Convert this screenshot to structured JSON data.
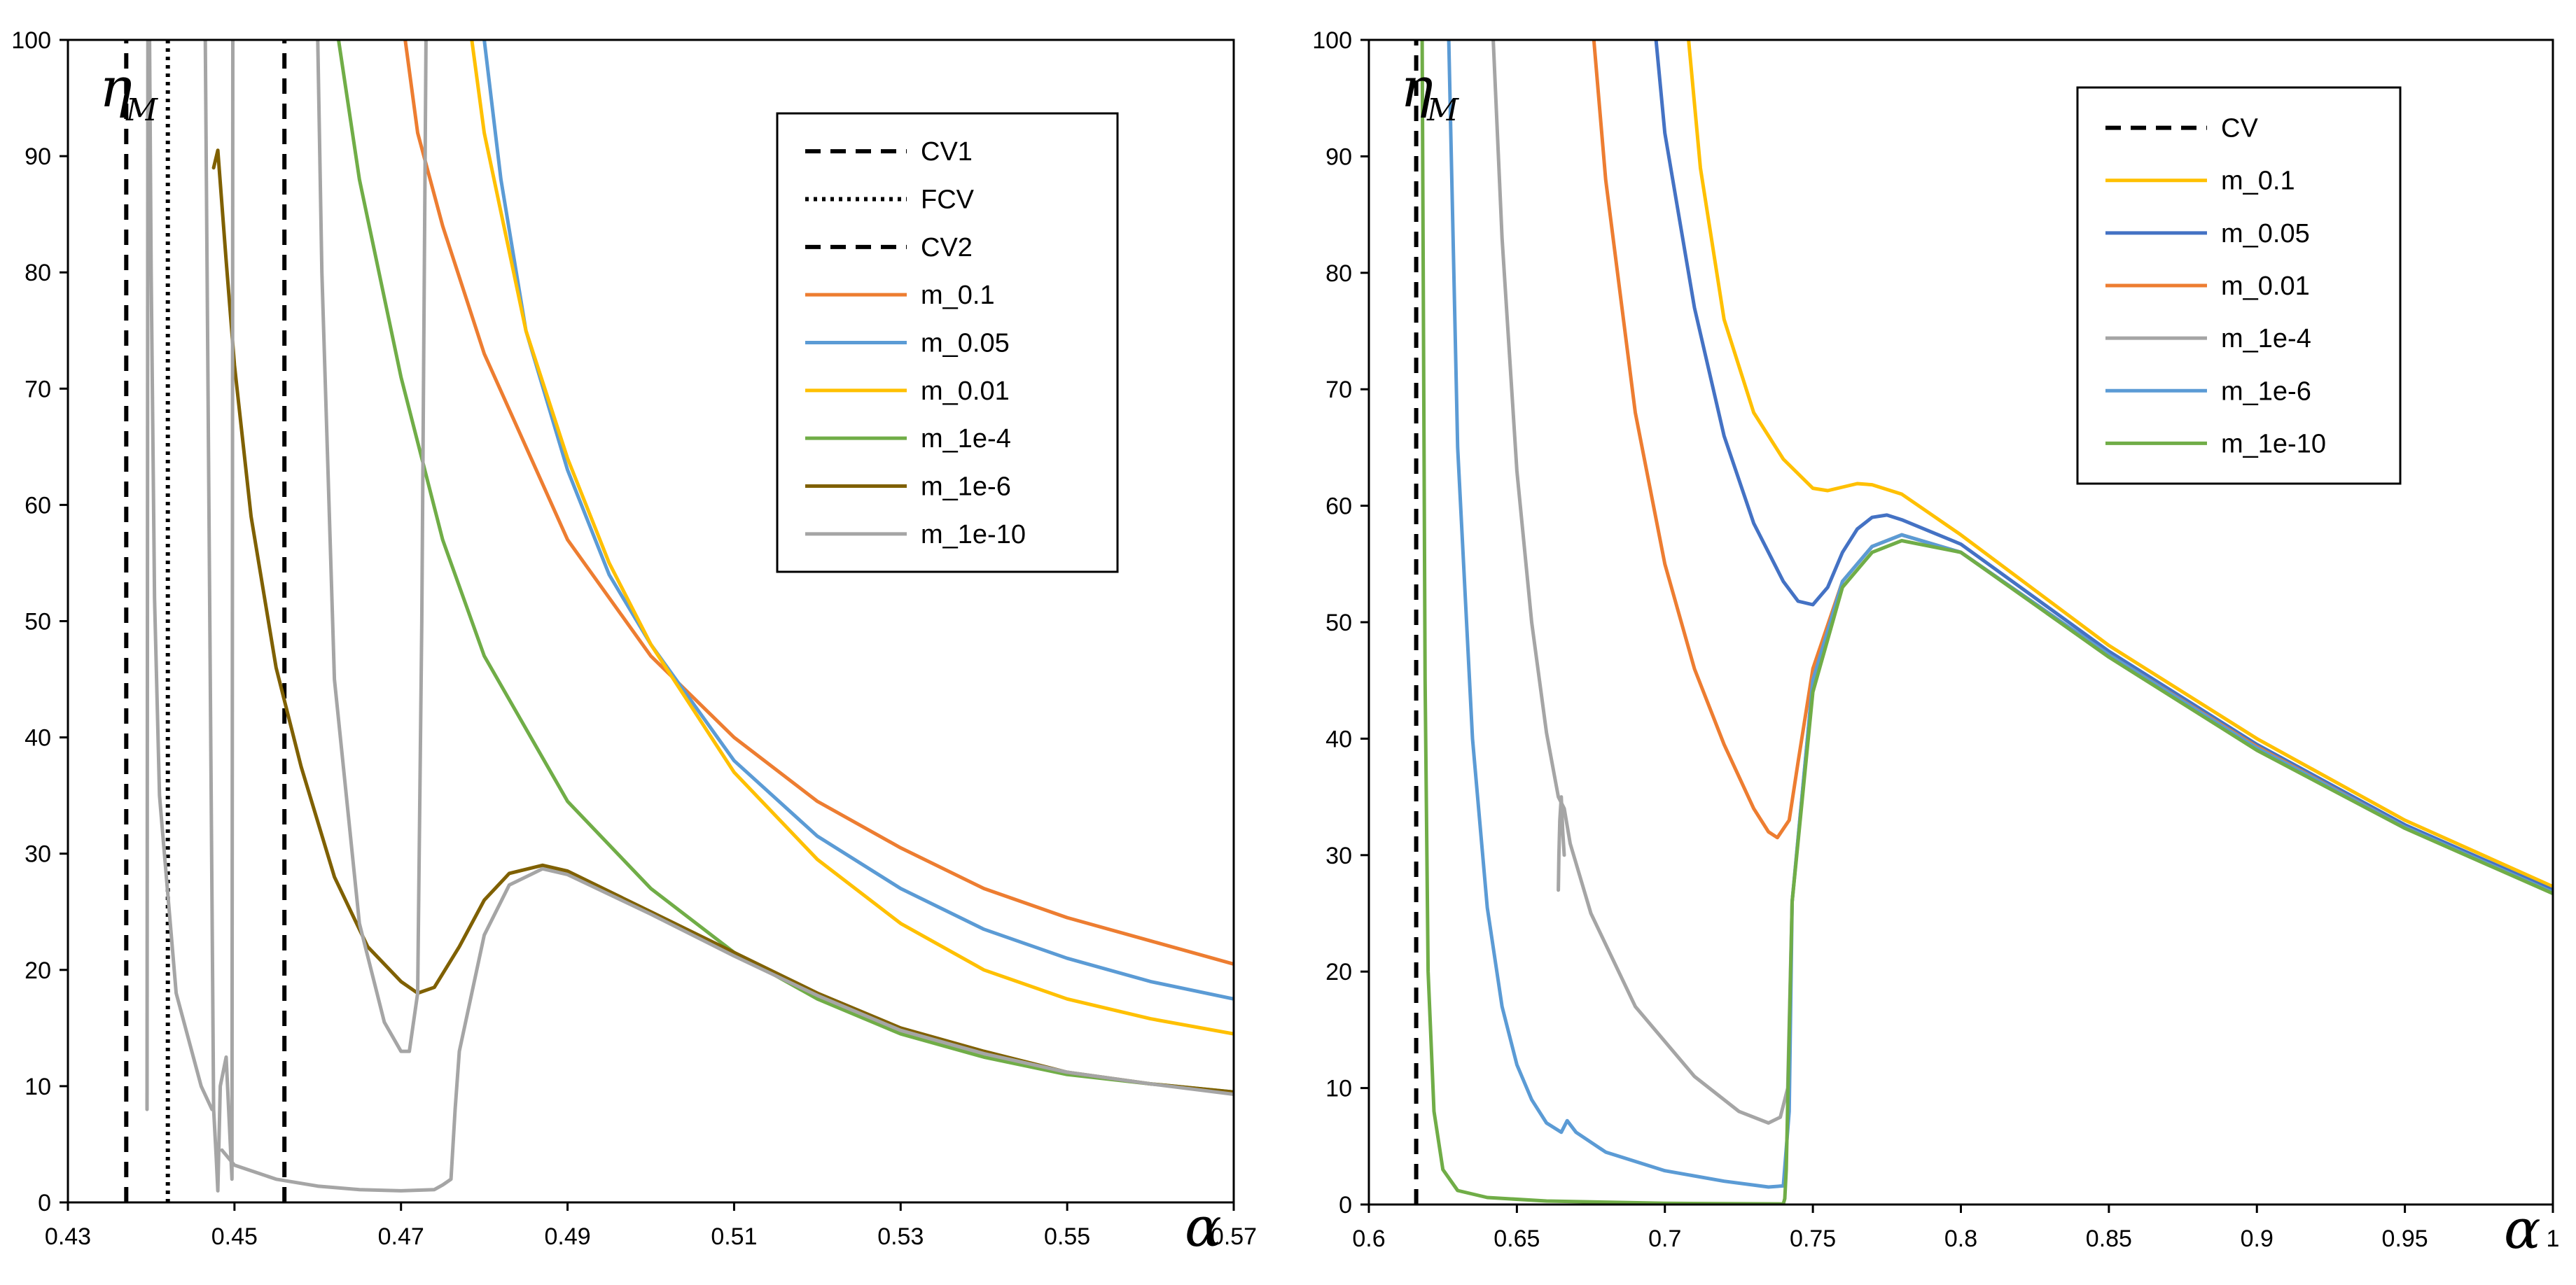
{
  "chart_data": [
    {
      "type": "line",
      "panel": "left",
      "xlabel": "α",
      "ylabel_main": "η",
      "ylabel_sub": "M",
      "xlim": [
        0.43,
        0.57
      ],
      "ylim": [
        0,
        100
      ],
      "xticks": [
        "0.43",
        "0.45",
        "0.47",
        "0.49",
        "0.51",
        "0.53",
        "0.55",
        "0.57"
      ],
      "yticks": [
        "0",
        "10",
        "20",
        "30",
        "40",
        "50",
        "60",
        "70",
        "80",
        "90",
        "100"
      ],
      "legend_position": "top-right",
      "series": [
        {
          "name": "CV1",
          "color": "#000000",
          "dash": "dashed",
          "x": [
            0.437,
            0.437
          ],
          "y": [
            0,
            100
          ]
        },
        {
          "name": "FCV",
          "color": "#000000",
          "dash": "dotted",
          "x": [
            0.442,
            0.442
          ],
          "y": [
            0,
            100
          ]
        },
        {
          "name": "CV2",
          "color": "#000000",
          "dash": "dashed",
          "x": [
            0.456,
            0.456
          ],
          "y": [
            0,
            100
          ]
        },
        {
          "name": "m_0.1",
          "color": "#ED7D31",
          "dash": "solid",
          "x": [
            0.4705,
            0.472,
            0.475,
            0.48,
            0.485,
            0.49,
            0.5,
            0.51,
            0.52,
            0.53,
            0.54,
            0.55,
            0.56,
            0.57
          ],
          "y": [
            100,
            92,
            84,
            73,
            65,
            57,
            47,
            40,
            34.5,
            30.5,
            27,
            24.5,
            22.5,
            20.5
          ]
        },
        {
          "name": "m_0.05",
          "color": "#5B9BD5",
          "dash": "solid",
          "x": [
            0.48,
            0.482,
            0.485,
            0.49,
            0.495,
            0.5,
            0.51,
            0.52,
            0.53,
            0.54,
            0.55,
            0.56,
            0.57
          ],
          "y": [
            100,
            88,
            75,
            63,
            54,
            48,
            38,
            31.5,
            27,
            23.5,
            21,
            19,
            17.5
          ]
        },
        {
          "name": "m_0.01",
          "color": "#FFC000",
          "dash": "solid",
          "x": [
            0.4785,
            0.48,
            0.485,
            0.49,
            0.495,
            0.5,
            0.51,
            0.52,
            0.53,
            0.54,
            0.55,
            0.56,
            0.57
          ],
          "y": [
            100,
            92,
            75,
            64,
            55,
            48,
            37,
            29.5,
            24,
            20,
            17.5,
            15.8,
            14.5
          ]
        },
        {
          "name": "m_1e-4",
          "color": "#70AD47",
          "dash": "solid",
          "x": [
            0.4625,
            0.465,
            0.47,
            0.475,
            0.48,
            0.49,
            0.5,
            0.51,
            0.52,
            0.53,
            0.54,
            0.55,
            0.56,
            0.57
          ],
          "y": [
            100,
            88,
            71,
            57,
            47,
            34.5,
            27,
            21.5,
            17.5,
            14.5,
            12.5,
            11,
            10.2,
            9.5
          ]
        },
        {
          "name": "m_1e-6",
          "color": "#7F6000",
          "dash": "solid",
          "x": [
            0.4475,
            0.448,
            0.449,
            0.45,
            0.452,
            0.455,
            0.458,
            0.462,
            0.466,
            0.47,
            0.472,
            0.474,
            0.477,
            0.48,
            0.483,
            0.487,
            0.49,
            0.5,
            0.51,
            0.52,
            0.53,
            0.54,
            0.55,
            0.56,
            0.57
          ],
          "y": [
            89,
            90.5,
            81,
            72,
            59,
            46,
            37.5,
            28,
            22,
            19,
            18,
            18.5,
            22,
            26,
            28.3,
            29,
            28.5,
            25,
            21.5,
            18,
            15,
            13,
            11.2,
            10.2,
            9.5
          ]
        },
        {
          "name": "m_1e-10",
          "color": "#A5A5A5",
          "dash": "solid",
          "x": [
            0.4485,
            0.45,
            0.455,
            0.46,
            0.465,
            0.47,
            0.474,
            0.475,
            0.476,
            0.4765,
            0.477,
            0.48,
            0.483,
            0.487,
            0.49,
            0.5,
            0.51,
            0.52,
            0.53,
            0.54,
            0.55,
            0.56,
            0.57
          ],
          "y": [
            4.5,
            3.2,
            2,
            1.4,
            1.1,
            1,
            1.1,
            1.5,
            2,
            8,
            13,
            23,
            27.3,
            28.7,
            28.2,
            24.8,
            21.2,
            17.8,
            14.8,
            12.8,
            11.2,
            10.2,
            9.3
          ]
        },
        {
          "name": "m_1e-10 (lower-alpha branches)",
          "color": "#A5A5A5",
          "dash": "solid",
          "legend": false,
          "x": [
            0.4465,
            0.4475,
            0.4478,
            0.448,
            0.4483,
            0.449,
            0.4497,
            0.4498
          ],
          "y": [
            100,
            8,
            4,
            1,
            10,
            12.5,
            2,
            100
          ]
        },
        {
          "name": "m_1e-10 (left spike)",
          "color": "#A5A5A5",
          "dash": "solid",
          "legend": false,
          "x": [
            0.4395,
            0.4396,
            0.4398,
            0.44,
            0.4404,
            0.441,
            0.443,
            0.446,
            0.4473
          ],
          "y": [
            8,
            100,
            100,
            80,
            52,
            35,
            18,
            10,
            8
          ]
        },
        {
          "name": "m_1e-10 (valley)",
          "color": "#A5A5A5",
          "dash": "solid",
          "legend": false,
          "x": [
            0.46,
            0.4605,
            0.462,
            0.465,
            0.468,
            0.47,
            0.471,
            0.472,
            0.4725,
            0.473
          ],
          "y": [
            100,
            80,
            45,
            24,
            15.5,
            13,
            13,
            18,
            50,
            100
          ]
        }
      ],
      "legend_entries": [
        "CV1",
        "FCV",
        "CV2",
        "m_0.1",
        "m_0.05",
        "m_0.01",
        "m_1e-4",
        "m_1e-6",
        "m_1e-10"
      ]
    },
    {
      "type": "line",
      "panel": "right",
      "xlabel": "α",
      "ylabel_main": "η",
      "ylabel_sub": "M",
      "xlim": [
        0.6,
        1.0
      ],
      "ylim": [
        0,
        100
      ],
      "xticks": [
        "0.6",
        "0.65",
        "0.7",
        "0.75",
        "0.8",
        "0.85",
        "0.9",
        "0.95",
        "1"
      ],
      "yticks": [
        "0",
        "10",
        "20",
        "30",
        "40",
        "50",
        "60",
        "70",
        "80",
        "90",
        "100"
      ],
      "legend_position": "top-right",
      "series": [
        {
          "name": "CV",
          "color": "#000000",
          "dash": "dashed",
          "x": [
            0.616,
            0.616
          ],
          "y": [
            0,
            100
          ]
        },
        {
          "name": "m_0.1",
          "color": "#FFC000",
          "dash": "solid",
          "x": [
            0.708,
            0.712,
            0.72,
            0.73,
            0.74,
            0.75,
            0.755,
            0.76,
            0.765,
            0.77,
            0.78,
            0.8,
            0.85,
            0.9,
            0.95,
            1.0
          ],
          "y": [
            100,
            89,
            76,
            68,
            64,
            61.5,
            61.3,
            61.6,
            61.9,
            61.8,
            61,
            57.5,
            48,
            40,
            33,
            27.3
          ]
        },
        {
          "name": "m_0.05",
          "color": "#4472C4",
          "dash": "solid",
          "x": [
            0.697,
            0.7,
            0.71,
            0.72,
            0.73,
            0.74,
            0.745,
            0.75,
            0.755,
            0.76,
            0.765,
            0.77,
            0.775,
            0.78,
            0.8,
            0.85,
            0.9,
            0.95,
            1.0
          ],
          "y": [
            100,
            92,
            77,
            66,
            58.5,
            53.5,
            51.8,
            51.5,
            53,
            56,
            58,
            59,
            59.2,
            58.8,
            56.7,
            47.5,
            39.5,
            32.6,
            27
          ]
        },
        {
          "name": "m_0.01",
          "color": "#ED7D31",
          "dash": "solid",
          "x": [
            0.676,
            0.68,
            0.69,
            0.7,
            0.71,
            0.72,
            0.73,
            0.735,
            0.738,
            0.742,
            0.745,
            0.75,
            0.76,
            0.77,
            0.78,
            0.8,
            0.85,
            0.9,
            0.95,
            1.0
          ],
          "y": [
            100,
            88,
            68,
            55,
            46,
            39.5,
            34,
            32,
            31.5,
            33,
            38,
            46,
            53.5,
            56.5,
            57.5,
            56,
            47.2,
            39.3,
            32.4,
            26.8
          ]
        },
        {
          "name": "m_1e-4",
          "color": "#A5A5A5",
          "dash": "solid",
          "x": [
            0.642,
            0.645,
            0.65,
            0.655,
            0.66,
            0.664,
            0.666,
            0.668,
            0.675,
            0.69,
            0.71,
            0.725,
            0.735,
            0.739,
            0.7415,
            0.743,
            0.75,
            0.76,
            0.77,
            0.78,
            0.8,
            0.85,
            0.9,
            0.95,
            1.0
          ],
          "y": [
            100,
            83,
            63,
            50,
            40.5,
            35,
            34,
            31,
            25,
            17,
            11,
            8,
            7,
            7.5,
            10,
            26,
            45,
            53.5,
            56.5,
            57.5,
            56,
            47.2,
            39.2,
            32.4,
            26.8
          ]
        },
        {
          "name": "m_1e-4 (branch)",
          "color": "#A5A5A5",
          "dash": "solid",
          "legend": false,
          "x": [
            0.664,
            0.6642,
            0.6645,
            0.665,
            0.6655,
            0.666
          ],
          "y": [
            27,
            30,
            33,
            35,
            32,
            30
          ]
        },
        {
          "name": "m_1e-6",
          "color": "#5B9BD5",
          "dash": "solid",
          "x": [
            0.627,
            0.63,
            0.635,
            0.64,
            0.645,
            0.65,
            0.655,
            0.66,
            0.665,
            0.667,
            0.67,
            0.68,
            0.7,
            0.72,
            0.735,
            0.74,
            0.742,
            0.743,
            0.75,
            0.76,
            0.77,
            0.78,
            0.8,
            0.85,
            0.9,
            0.95,
            1.0
          ],
          "y": [
            100,
            65,
            40,
            25.5,
            17,
            12,
            9,
            7,
            6.2,
            7.2,
            6.2,
            4.5,
            2.9,
            2,
            1.5,
            1.6,
            8,
            26,
            45,
            53.5,
            56.5,
            57.5,
            56,
            47.2,
            39.2,
            32.4,
            26.8
          ]
        },
        {
          "name": "m_1e-10",
          "color": "#70AD47",
          "dash": "solid",
          "x": [
            0.618,
            0.619,
            0.62,
            0.622,
            0.625,
            0.63,
            0.64,
            0.66,
            0.7,
            0.74,
            0.7405,
            0.741,
            0.743,
            0.75,
            0.76,
            0.77,
            0.78,
            0.8,
            0.85,
            0.9,
            0.95,
            1.0
          ],
          "y": [
            100,
            45,
            20,
            8,
            3,
            1.2,
            0.6,
            0.3,
            0.1,
            0.05,
            0.5,
            3,
            26,
            44,
            53,
            56,
            57,
            56,
            47,
            39,
            32.3,
            26.7
          ]
        }
      ],
      "legend_entries": [
        "CV",
        "m_0.1",
        "m_0.05",
        "m_0.01",
        "m_1e-4",
        "m_1e-6",
        "m_1e-10"
      ]
    }
  ]
}
